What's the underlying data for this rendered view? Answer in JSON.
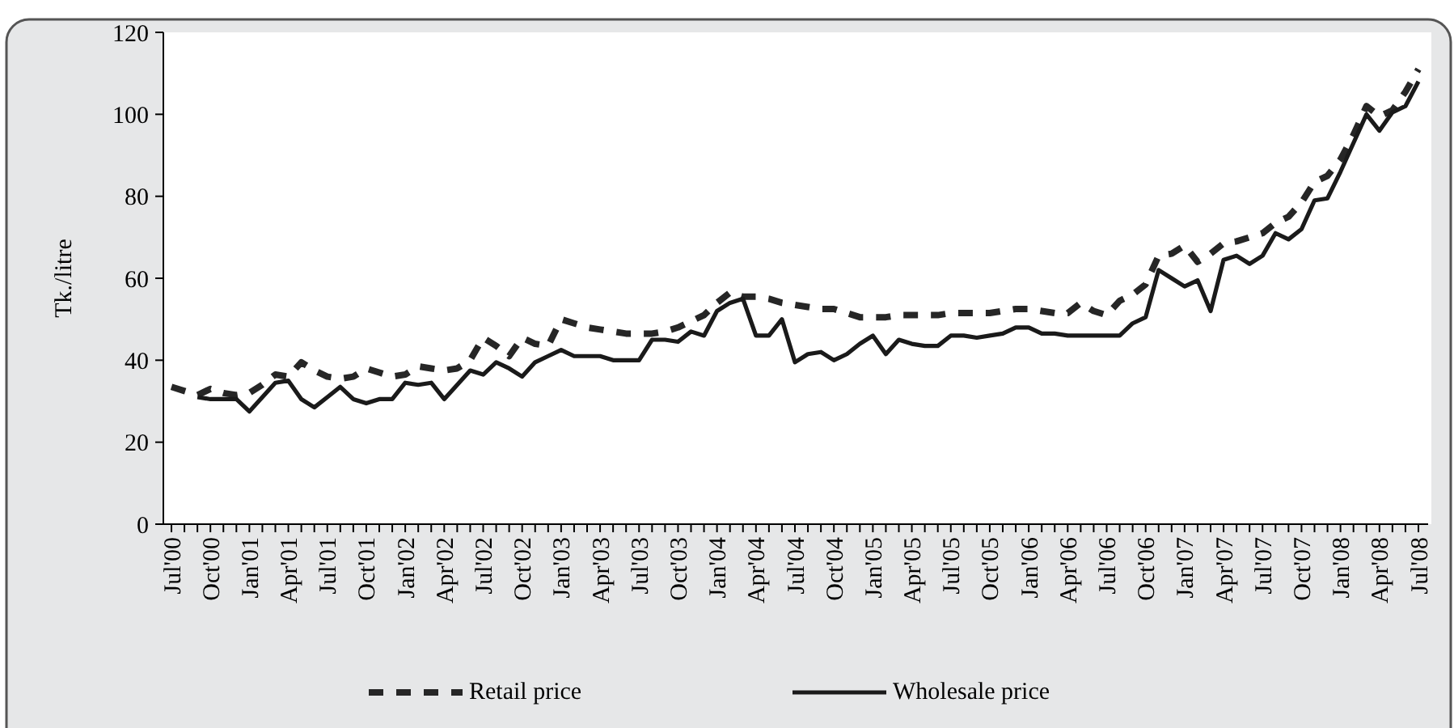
{
  "chart_data": {
    "type": "line",
    "ylabel": "Tk./litre",
    "categories": [
      "Jul'00",
      null,
      null,
      "Oct'00",
      null,
      null,
      "Jan'01",
      null,
      null,
      "Apr'01",
      null,
      null,
      "Jul'01",
      null,
      null,
      "Oct'01",
      null,
      null,
      "Jan'02",
      null,
      null,
      "Apr'02",
      null,
      null,
      "Jul'02",
      null,
      null,
      "Oct'02",
      null,
      null,
      "Jan'03",
      null,
      null,
      "Apr'03",
      null,
      null,
      "Jul'03",
      null,
      null,
      "Oct'03",
      null,
      null,
      "Jan'04",
      null,
      null,
      "Apr'04",
      null,
      null,
      "Jul'04",
      null,
      null,
      "Oct'04",
      null,
      null,
      "Jan'05",
      null,
      null,
      "Apr'05",
      null,
      null,
      "Jul'05",
      null,
      null,
      "Oct'05",
      null,
      null,
      "Jan'06",
      null,
      null,
      "Apr'06",
      null,
      null,
      "Jul'06",
      null,
      null,
      "Oct'06",
      null,
      null,
      "Jan'07",
      null,
      null,
      "Apr'07",
      null,
      null,
      "Jul'07",
      null,
      null,
      "Oct'07",
      null,
      null,
      "Jan'08",
      null,
      null,
      "Apr'08",
      null,
      null,
      "Jul'08"
    ],
    "series": [
      {
        "name": "Retail price",
        "color": "#262626",
        "line_style": "dashed",
        "values": [
          33.5,
          32.5,
          31.5,
          33,
          32,
          31.5,
          32,
          34,
          36.5,
          36,
          39.5,
          37.5,
          36,
          35.5,
          36,
          38,
          37,
          36,
          36.5,
          38.5,
          38,
          37.5,
          38,
          40,
          45.5,
          43.5,
          41,
          45.5,
          44,
          43.5,
          50,
          49,
          48,
          47.5,
          47,
          46.5,
          46.5,
          46.5,
          47,
          48,
          49.5,
          51,
          54,
          56.5,
          55.5,
          55.5,
          55,
          54,
          53.5,
          53,
          52.5,
          52.5,
          51.5,
          50.5,
          50.5,
          50.5,
          51,
          51,
          51,
          51,
          51.5,
          51.5,
          51.5,
          51.5,
          52,
          52.5,
          52.5,
          52,
          51.5,
          51.5,
          54,
          52,
          51,
          54.5,
          56,
          58.5,
          65.5,
          66,
          68,
          64,
          66,
          68.5,
          69,
          70,
          71,
          73.5,
          75,
          78.5,
          83.5,
          85,
          89,
          95,
          102,
          99.5,
          101,
          105.5,
          111
        ]
      },
      {
        "name": "Wholesale price",
        "color": "#1a1a1a",
        "line_style": "solid",
        "values": [
          null,
          null,
          31,
          30.5,
          30.5,
          30.5,
          27.5,
          31,
          34.5,
          35,
          30.5,
          28.5,
          31,
          33.5,
          30.5,
          29.5,
          30.5,
          30.5,
          34.5,
          34,
          34.5,
          30.5,
          34,
          37.5,
          36.5,
          39.5,
          38,
          36,
          39.5,
          41,
          42.5,
          41,
          41,
          41,
          40,
          40,
          40,
          45,
          45,
          44.5,
          47,
          46,
          52,
          54,
          55,
          46,
          46,
          50,
          39.5,
          41.5,
          42,
          40,
          41.5,
          44,
          46,
          41.5,
          45,
          44,
          43.5,
          43.5,
          46,
          46,
          45.5,
          46,
          46.5,
          48,
          48,
          46.5,
          46.5,
          46,
          46,
          46,
          46,
          46,
          49,
          50.5,
          62,
          60,
          58,
          59.5,
          52,
          64.5,
          65.5,
          63.5,
          65.5,
          71,
          69.5,
          72,
          79,
          79.5,
          86,
          93,
          100,
          96,
          100.5,
          102,
          108
        ]
      }
    ],
    "ylim": [
      0,
      120
    ],
    "yticks": [
      0,
      20,
      40,
      60,
      80,
      100,
      120
    ],
    "grid": false,
    "legend": "bottom",
    "marker": "none"
  }
}
